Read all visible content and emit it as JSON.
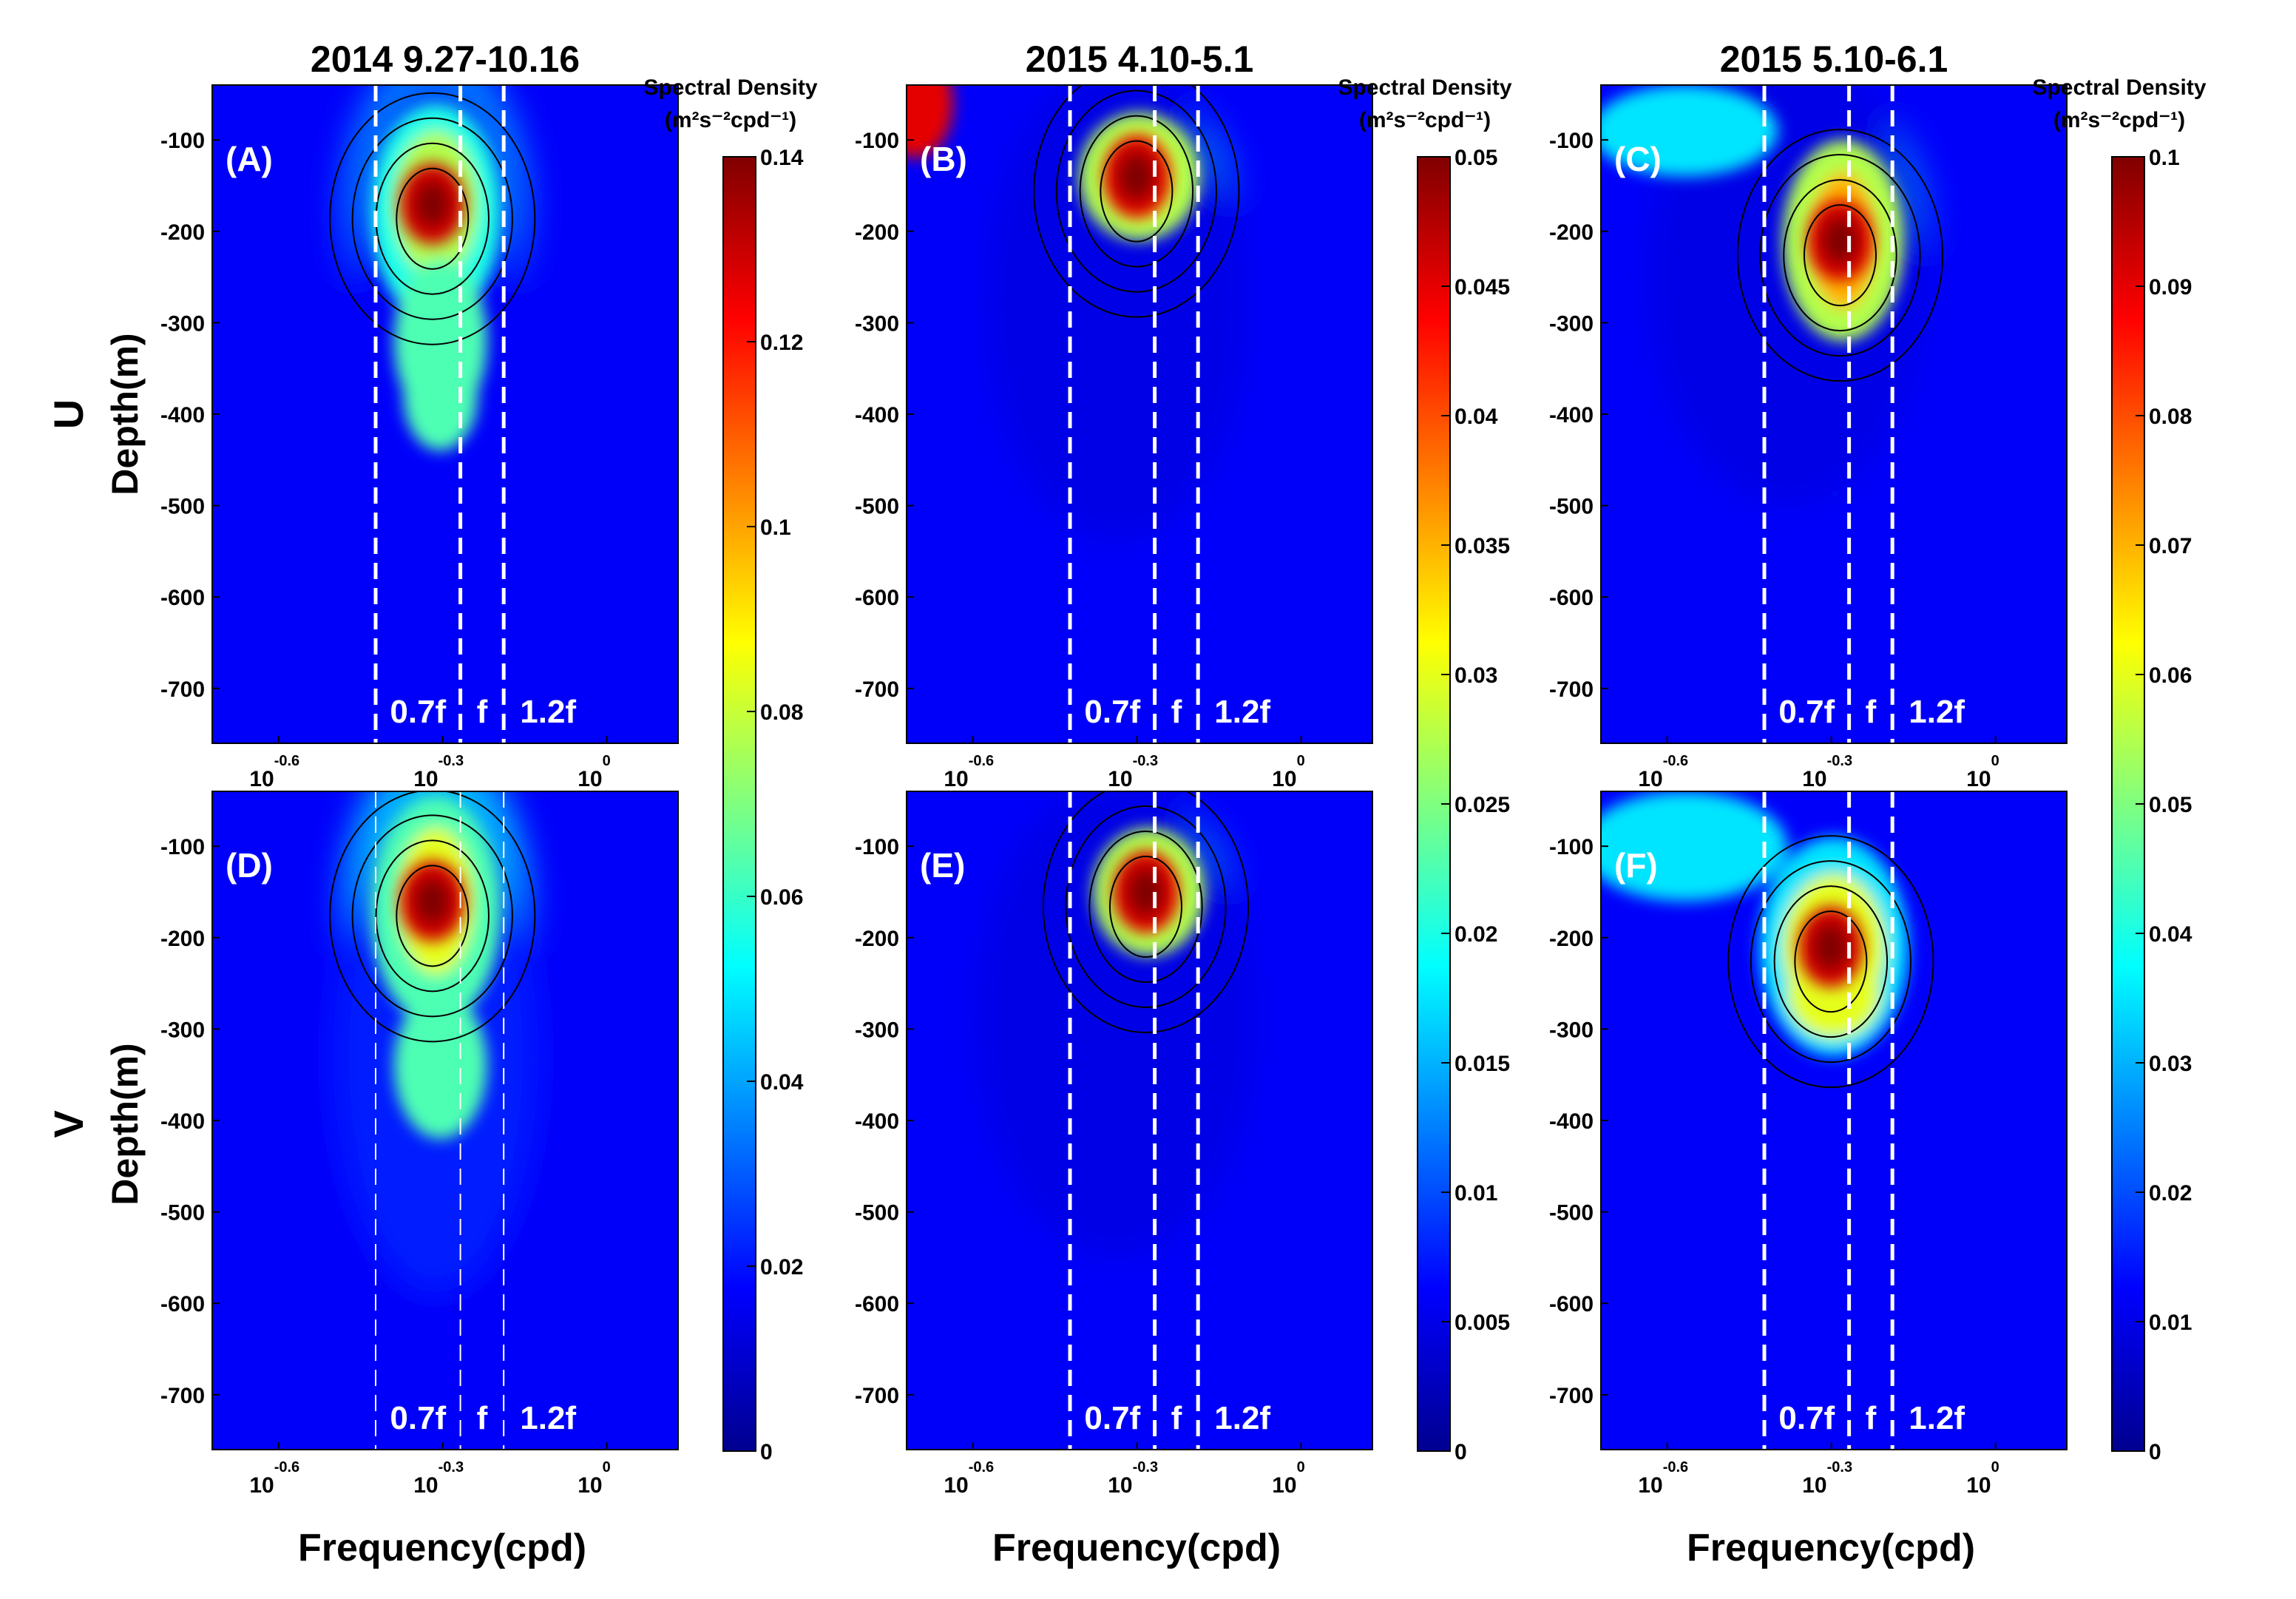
{
  "figure": {
    "y_axis_label": "Depth(m)",
    "x_axis_label": "Frequency(cpd)",
    "row_labels": [
      "U",
      "V"
    ],
    "colorbar_title_line1": "Spectral Density",
    "colorbar_title_line2": "(m²s⁻²cpd⁻¹)"
  },
  "chart_data": [
    {
      "panel": "(A)",
      "component": "U",
      "title": "2014 9.27-10.16",
      "type": "heatmap",
      "colormap": "jet",
      "xscale": "log10",
      "xlim_cpd": [
        0.19,
        1.35
      ],
      "ylim_m": [
        -760,
        -40
      ],
      "band_lines": [
        {
          "label": "0.7f",
          "x_cpd": 0.378
        },
        {
          "label": "f",
          "x_cpd": 0.54
        },
        {
          "label": "1.2f",
          "x_cpd": 0.648
        }
      ],
      "y_ticks": [
        -100,
        -200,
        -300,
        -400,
        -500,
        -600,
        -700
      ],
      "x_ticks": [
        {
          "base": "10",
          "exp": "-0.6"
        },
        {
          "base": "10",
          "exp": "-0.3"
        },
        {
          "base": "10",
          "exp": "0"
        }
      ],
      "peak": {
        "x_cpd": 0.48,
        "depth_m": -170,
        "value": 0.14
      },
      "colorbar": {
        "min": 0,
        "max": 0.14,
        "ticks": [
          "0",
          "0.02",
          "0.04",
          "0.06",
          "0.08",
          "0.1",
          "0.12",
          "0.14"
        ]
      }
    },
    {
      "panel": "(B)",
      "component": "U",
      "title": "2015 4.10-5.1",
      "type": "heatmap",
      "colormap": "jet",
      "xscale": "log10",
      "xlim_cpd": [
        0.19,
        1.35
      ],
      "ylim_m": [
        -760,
        -40
      ],
      "band_lines": [
        {
          "label": "0.7f",
          "x_cpd": 0.378
        },
        {
          "label": "f",
          "x_cpd": 0.54
        },
        {
          "label": "1.2f",
          "x_cpd": 0.648
        }
      ],
      "y_ticks": [
        -100,
        -200,
        -300,
        -400,
        -500,
        -600,
        -700
      ],
      "x_ticks": [
        {
          "base": "10",
          "exp": "-0.6"
        },
        {
          "base": "10",
          "exp": "-0.3"
        },
        {
          "base": "10",
          "exp": "0"
        }
      ],
      "peak": {
        "x_cpd": 0.5,
        "depth_m": -140,
        "value": 0.05
      },
      "colorbar": {
        "min": 0,
        "max": 0.05,
        "ticks": [
          "0",
          "0.005",
          "0.01",
          "0.015",
          "0.02",
          "0.025",
          "0.03",
          "0.035",
          "0.04",
          "0.045",
          "0.05"
        ]
      }
    },
    {
      "panel": "(C)",
      "component": "U",
      "title": "2015 5.10-6.1",
      "type": "heatmap",
      "colormap": "jet",
      "xscale": "log10",
      "xlim_cpd": [
        0.19,
        1.35
      ],
      "ylim_m": [
        -760,
        -40
      ],
      "band_lines": [
        {
          "label": "0.7f",
          "x_cpd": 0.378
        },
        {
          "label": "f",
          "x_cpd": 0.54
        },
        {
          "label": "1.2f",
          "x_cpd": 0.648
        }
      ],
      "y_ticks": [
        -100,
        -200,
        -300,
        -400,
        -500,
        -600,
        -700
      ],
      "x_ticks": [
        {
          "base": "10",
          "exp": "-0.6"
        },
        {
          "base": "10",
          "exp": "-0.3"
        },
        {
          "base": "10",
          "exp": "0"
        }
      ],
      "peak": {
        "x_cpd": 0.52,
        "depth_m": -210,
        "value": 0.1
      },
      "colorbar": {
        "min": 0,
        "max": 0.1,
        "ticks": [
          "0",
          "0.01",
          "0.02",
          "0.03",
          "0.04",
          "0.05",
          "0.06",
          "0.07",
          "0.08",
          "0.09",
          "0.1"
        ]
      }
    },
    {
      "panel": "(D)",
      "component": "V",
      "title": "2014 9.27-10.16",
      "type": "heatmap",
      "colormap": "jet",
      "xscale": "log10",
      "xlim_cpd": [
        0.19,
        1.35
      ],
      "ylim_m": [
        -760,
        -40
      ],
      "band_lines": [
        {
          "label": "0.7f",
          "x_cpd": 0.378
        },
        {
          "label": "f",
          "x_cpd": 0.54
        },
        {
          "label": "1.2f",
          "x_cpd": 0.648
        }
      ],
      "y_ticks": [
        -100,
        -200,
        -300,
        -400,
        -500,
        -600,
        -700
      ],
      "x_ticks": [
        {
          "base": "10",
          "exp": "-0.6"
        },
        {
          "base": "10",
          "exp": "-0.3"
        },
        {
          "base": "10",
          "exp": "0"
        }
      ],
      "peak": {
        "x_cpd": 0.48,
        "depth_m": -160,
        "value": 0.14
      },
      "colorbar": {
        "min": 0,
        "max": 0.14
      }
    },
    {
      "panel": "(E)",
      "component": "V",
      "title": "2015 4.10-5.1",
      "type": "heatmap",
      "colormap": "jet",
      "xscale": "log10",
      "xlim_cpd": [
        0.19,
        1.35
      ],
      "ylim_m": [
        -760,
        -40
      ],
      "band_lines": [
        {
          "label": "0.7f",
          "x_cpd": 0.378
        },
        {
          "label": "f",
          "x_cpd": 0.54
        },
        {
          "label": "1.2f",
          "x_cpd": 0.648
        }
      ],
      "y_ticks": [
        -100,
        -200,
        -300,
        -400,
        -500,
        -600,
        -700
      ],
      "x_ticks": [
        {
          "base": "10",
          "exp": "-0.6"
        },
        {
          "base": "10",
          "exp": "-0.3"
        },
        {
          "base": "10",
          "exp": "0"
        }
      ],
      "peak": {
        "x_cpd": 0.52,
        "depth_m": -150,
        "value": 0.05
      },
      "colorbar": {
        "min": 0,
        "max": 0.05
      }
    },
    {
      "panel": "(F)",
      "component": "V",
      "title": "2015 5.10-6.1",
      "type": "heatmap",
      "colormap": "jet",
      "xscale": "log10",
      "xlim_cpd": [
        0.19,
        1.35
      ],
      "ylim_m": [
        -760,
        -40
      ],
      "band_lines": [
        {
          "label": "0.7f",
          "x_cpd": 0.378
        },
        {
          "label": "f",
          "x_cpd": 0.54
        },
        {
          "label": "1.2f",
          "x_cpd": 0.648
        }
      ],
      "y_ticks": [
        -100,
        -200,
        -300,
        -400,
        -500,
        -600,
        -700
      ],
      "x_ticks": [
        {
          "base": "10",
          "exp": "-0.6"
        },
        {
          "base": "10",
          "exp": "-0.3"
        },
        {
          "base": "10",
          "exp": "0"
        }
      ],
      "peak": {
        "x_cpd": 0.5,
        "depth_m": -210,
        "value": 0.1
      },
      "colorbar": {
        "min": 0,
        "max": 0.1
      }
    }
  ]
}
